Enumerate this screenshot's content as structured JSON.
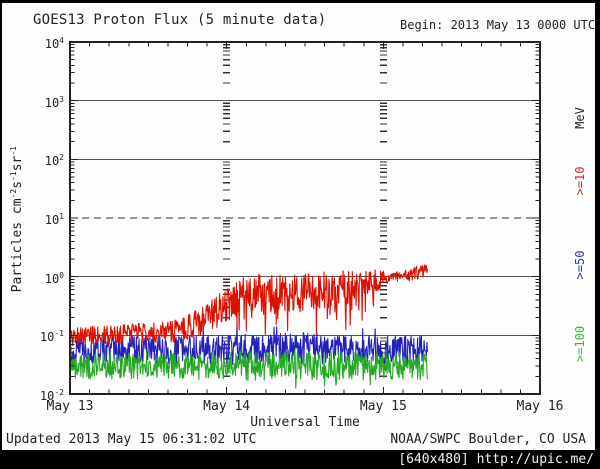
{
  "header": {
    "title": "GOES13 Proton Flux (5 minute data)",
    "begin_label": "Begin: 2013 May 13 0000 UTC"
  },
  "footer": {
    "updated": "Updated 2013 May 15 06:31:02 UTC",
    "source": "NOAA/SWPC Boulder, CO USA"
  },
  "watermark": {
    "text": "[640x480] http://upic.me/"
  },
  "chart_data": {
    "type": "line",
    "title": "GOES13 Proton Flux (5 minute data)",
    "xlabel": "Universal Time",
    "ylabel_parts": [
      {
        "t": "Particles cm",
        "e": "-2"
      },
      {
        "t": "s",
        "e": "-1"
      },
      {
        "t": "sr",
        "e": "-1"
      }
    ],
    "x_tick_labels": [
      "May 13",
      "May 14",
      "May 15",
      "May 16"
    ],
    "x_days": 3,
    "y_exponents": [
      4,
      3,
      2,
      1,
      0,
      -1,
      -2
    ],
    "ylim_log": [
      -2,
      4
    ],
    "grid": {
      "solid_decades": [
        3,
        2,
        0,
        -1
      ],
      "dashed_decades": [
        1
      ],
      "day_tick_columns": [
        1,
        2
      ],
      "hours_per_minor_tick": 3
    },
    "legend": {
      "units_label": "MeV",
      "units_color": "#222222",
      "entries": [
        {
          "label": ">=10",
          "color": "#d93025"
        },
        {
          "label": ">=50",
          "color": "#3333bb"
        },
        {
          "label": ">=100",
          "color": "#33bb33"
        }
      ]
    },
    "samples_per_day": 288,
    "end_day": 2.28,
    "series": [
      {
        "name": ">=50 MeV",
        "color": "#2222bb",
        "seed": 1984,
        "x": [
          0.0,
          0.5,
          1.0,
          1.5,
          2.0,
          2.28
        ],
        "y": [
          -1.27,
          -1.26,
          -1.25,
          -1.22,
          -1.26,
          -1.24
        ],
        "amp": [
          0.24,
          0.24,
          0.26,
          0.27,
          0.25,
          0.25
        ],
        "spikes": {
          "from": 0.0,
          "to": 2.28,
          "prob": 0.03,
          "amount": 0.3
        }
      },
      {
        "name": ">=100 MeV",
        "color": "#22aa22",
        "seed": 777,
        "x": [
          0.0,
          0.5,
          1.0,
          1.5,
          2.0,
          2.28
        ],
        "y": [
          -1.53,
          -1.52,
          -1.52,
          -1.5,
          -1.53,
          -1.52
        ],
        "amp": [
          0.22,
          0.23,
          0.25,
          0.26,
          0.23,
          0.23
        ],
        "spikes": {
          "from": 0.0,
          "to": 2.28,
          "prob": 0.02,
          "amount": -0.25
        }
      },
      {
        "name": ">=10 MeV",
        "color": "#dd1100",
        "seed": 42,
        "x": [
          0.0,
          0.6,
          0.7,
          0.85,
          1.0,
          1.1,
          1.2,
          1.4,
          1.6,
          1.8,
          1.95,
          2.05,
          2.28
        ],
        "y": [
          -1.02,
          -0.95,
          -0.92,
          -0.75,
          -0.5,
          -0.3,
          -0.28,
          -0.3,
          -0.25,
          -0.18,
          -0.08,
          -0.02,
          0.1
        ],
        "amp": [
          0.17,
          0.17,
          0.2,
          0.25,
          0.3,
          0.3,
          0.32,
          0.33,
          0.33,
          0.3,
          0.2,
          0.1,
          0.12
        ],
        "spikes": {
          "from": 1.05,
          "to": 1.95,
          "prob": 0.13,
          "amount": -0.5
        }
      }
    ]
  }
}
